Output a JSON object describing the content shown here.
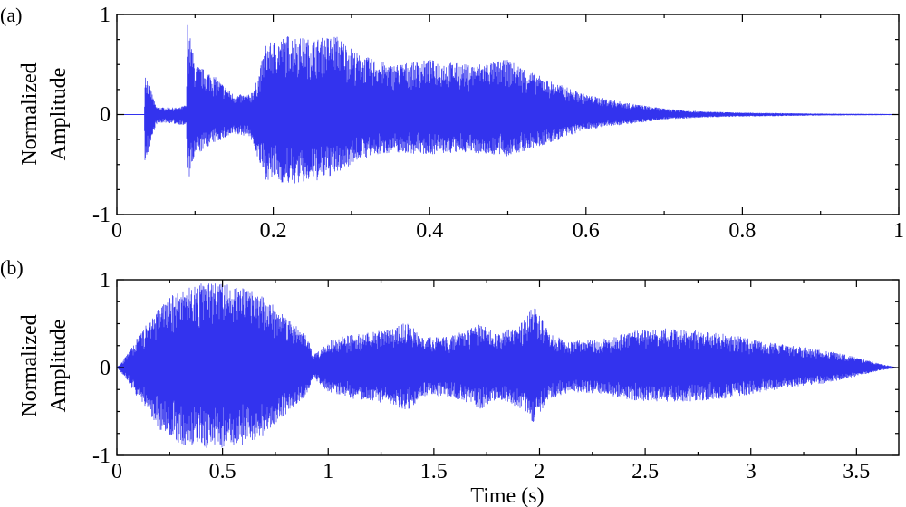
{
  "charts": {
    "a": {
      "label": "(a)",
      "ylabel_line1": "Normalized",
      "ylabel_line2": "Amplitude",
      "xticks": [
        "0",
        "0.2",
        "0.4",
        "0.6",
        "0.8",
        "1"
      ],
      "yticks": [
        "-1",
        "0",
        "1"
      ]
    },
    "b": {
      "label": "(b)",
      "ylabel_line1": "Normalized",
      "ylabel_line2": "Amplitude",
      "xlabel": "Time (s)",
      "xticks": [
        "0",
        "0.5",
        "1",
        "1.5",
        "2",
        "2.5",
        "3",
        "3.5"
      ],
      "yticks": [
        "-1",
        "0",
        "1"
      ]
    }
  },
  "chart_data": [
    {
      "type": "line",
      "panel": "(a)",
      "xlabel": "",
      "ylabel": "Normalized Amplitude",
      "xlim": [
        0,
        1
      ],
      "ylim": [
        -1,
        1
      ],
      "grid": false,
      "color": "#3333ee",
      "series": [
        {
          "envelope_x": [
            0,
            0.035,
            0.036,
            0.05,
            0.06,
            0.08,
            0.089,
            0.09,
            0.1,
            0.12,
            0.15,
            0.17,
            0.18,
            0.19,
            0.22,
            0.25,
            0.28,
            0.31,
            0.35,
            0.4,
            0.45,
            0.5,
            0.55,
            0.6,
            0.65,
            0.7,
            0.75,
            0.8,
            0.85,
            0.9,
            0.95,
            1.0
          ],
          "envelope_upper": [
            0.0,
            0.0,
            0.45,
            0.08,
            0.07,
            0.07,
            0.1,
            0.95,
            0.5,
            0.42,
            0.2,
            0.2,
            0.35,
            0.7,
            0.8,
            0.75,
            0.8,
            0.6,
            0.5,
            0.55,
            0.5,
            0.55,
            0.35,
            0.2,
            0.12,
            0.06,
            0.03,
            0.02,
            0.015,
            0.01,
            0.008,
            0.005
          ],
          "envelope_lower": [
            0.0,
            0.0,
            -0.5,
            -0.1,
            -0.08,
            -0.1,
            -0.12,
            -0.72,
            -0.42,
            -0.3,
            -0.2,
            -0.22,
            -0.45,
            -0.65,
            -0.7,
            -0.68,
            -0.6,
            -0.45,
            -0.38,
            -0.4,
            -0.38,
            -0.42,
            -0.3,
            -0.15,
            -0.1,
            -0.05,
            -0.03,
            -0.02,
            -0.015,
            -0.01,
            -0.008,
            -0.005
          ]
        }
      ]
    },
    {
      "type": "line",
      "panel": "(b)",
      "xlabel": "Time (s)",
      "ylabel": "Normalized Amplitude",
      "xlim": [
        0,
        3.7
      ],
      "ylim": [
        -1,
        1
      ],
      "grid": false,
      "color": "#3333ee",
      "series": [
        {
          "envelope_x": [
            0,
            0.05,
            0.1,
            0.2,
            0.3,
            0.4,
            0.5,
            0.6,
            0.7,
            0.8,
            0.9,
            0.93,
            1.0,
            1.1,
            1.2,
            1.3,
            1.37,
            1.45,
            1.55,
            1.65,
            1.72,
            1.8,
            1.9,
            1.97,
            2.05,
            2.15,
            2.3,
            2.45,
            2.6,
            2.75,
            2.9,
            3.05,
            3.2,
            3.35,
            3.5,
            3.6,
            3.7
          ],
          "envelope_upper": [
            0.0,
            0.15,
            0.35,
            0.7,
            0.9,
            0.96,
            0.97,
            0.92,
            0.8,
            0.6,
            0.35,
            0.15,
            0.3,
            0.38,
            0.4,
            0.45,
            0.52,
            0.35,
            0.35,
            0.42,
            0.5,
            0.38,
            0.48,
            0.72,
            0.38,
            0.3,
            0.33,
            0.42,
            0.45,
            0.42,
            0.38,
            0.3,
            0.25,
            0.2,
            0.12,
            0.05,
            0.0
          ],
          "envelope_lower": [
            0.0,
            -0.15,
            -0.35,
            -0.7,
            -0.88,
            -0.92,
            -0.92,
            -0.88,
            -0.78,
            -0.55,
            -0.3,
            -0.12,
            -0.28,
            -0.35,
            -0.38,
            -0.42,
            -0.5,
            -0.33,
            -0.33,
            -0.4,
            -0.48,
            -0.36,
            -0.45,
            -0.62,
            -0.35,
            -0.28,
            -0.3,
            -0.38,
            -0.4,
            -0.38,
            -0.35,
            -0.28,
            -0.22,
            -0.18,
            -0.1,
            -0.04,
            0.0
          ]
        }
      ]
    }
  ]
}
